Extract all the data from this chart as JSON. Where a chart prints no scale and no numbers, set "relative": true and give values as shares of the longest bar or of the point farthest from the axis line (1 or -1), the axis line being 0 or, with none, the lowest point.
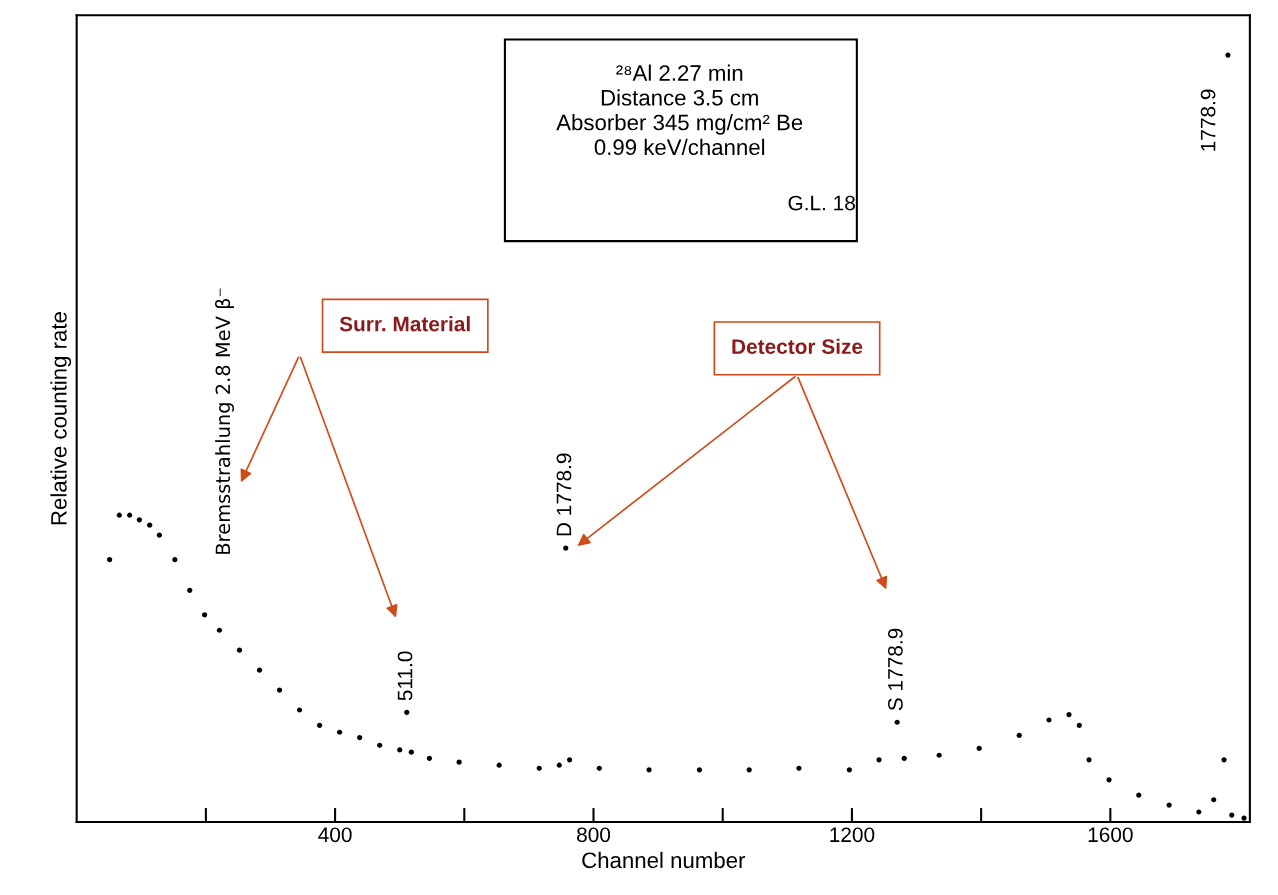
{
  "chart_data": {
    "type": "scatter",
    "xlabel": "Channel number",
    "ylabel": "Relative counting rate",
    "relative": true,
    "xlim": [
      0,
      1816
    ],
    "xticks": [
      {
        "value": 200,
        "label": null
      },
      400,
      {
        "value": 600,
        "label": null
      },
      800,
      {
        "value": 1000,
        "label": null
      },
      1200,
      {
        "value": 1400,
        "label": null
      },
      1600
    ],
    "x": [
      51,
      66,
      82,
      97,
      113,
      128,
      152,
      175,
      198,
      221,
      252,
      283,
      314,
      345,
      376,
      407,
      438,
      469,
      500,
      511,
      518,
      546,
      592,
      654,
      716,
      747,
      757,
      763,
      809,
      886,
      964,
      1041,
      1118,
      1196,
      1242,
      1270,
      1281,
      1335,
      1397,
      1459,
      1505,
      1536,
      1552,
      1567,
      1598,
      1644,
      1691,
      1737,
      1760,
      1776,
      1782,
      1788,
      1807
    ],
    "series": [
      {
        "color": "#000000",
        "values": [
          0.342,
          0.4,
          0.4,
          0.394,
          0.387,
          0.374,
          0.342,
          0.302,
          0.27,
          0.25,
          0.224,
          0.198,
          0.172,
          0.146,
          0.126,
          0.117,
          0.11,
          0.1,
          0.094,
          0.143,
          0.091,
          0.083,
          0.078,
          0.074,
          0.07,
          0.074,
          0.357,
          0.081,
          0.07,
          0.068,
          0.068,
          0.068,
          0.07,
          0.068,
          0.081,
          0.13,
          0.083,
          0.087,
          0.096,
          0.113,
          0.133,
          0.14,
          0.126,
          0.081,
          0.055,
          0.035,
          0.022,
          0.013,
          0.029,
          0.081,
          1.0,
          0.009,
          0.005
        ]
      }
    ],
    "marker": "circle",
    "grid": false,
    "annotations": [
      {
        "text": "511.0",
        "x": 511,
        "y": 0.143
      },
      {
        "text": "D 1778.9",
        "x": 757,
        "y": 0.357
      },
      {
        "text": "S 1778.9",
        "x": 1270,
        "y": 0.13
      },
      {
        "text": "1778.9",
        "x": 1782,
        "y": 1.0
      },
      "Bremsstrahlung 2.8 MeV β⁻",
      "²⁸Al 2.27 min\nDistance 3.5 cm\nAbsorber 345 mg/cm² Be\n0.99 keV/channel",
      "G.L. 18",
      "Surr. Material",
      "Detector Size"
    ]
  }
}
